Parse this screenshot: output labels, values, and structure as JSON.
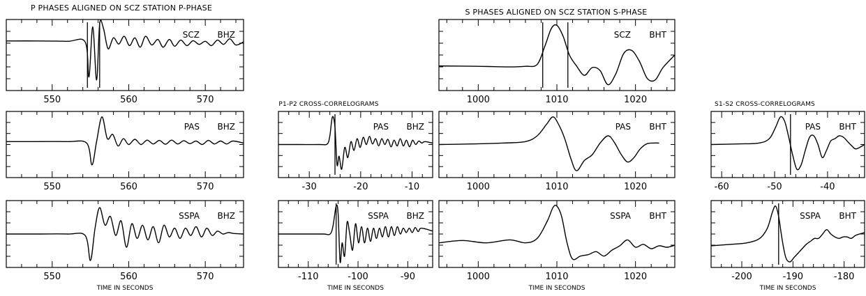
{
  "headers": {
    "p_phases": "P PHASES ALIGNED ON SCZ STATION P-PHASE",
    "s_phases": "S PHASES ALIGNED ON SCZ STATION S-PHASE",
    "p_correlograms": "P1-P2 CROSS-CORRELOGRAMS",
    "s_correlograms": "S1-S2 CROSS-CORRELOGRAMS"
  },
  "chart_data": [
    {
      "id": "p-scz",
      "type": "line",
      "station": "SCZ",
      "channel": "BHZ",
      "xlim": [
        544,
        575
      ],
      "xticks": [
        550,
        560,
        570
      ],
      "xlabel": "",
      "series": [
        {
          "x": [
            544,
            548,
            552,
            554.3,
            554.8,
            555.3,
            555.8,
            556.2,
            556.7,
            557.3,
            558,
            558.7,
            559.4,
            560.1,
            560.8,
            561.5,
            562.2,
            563,
            563.8,
            564.5,
            565.3,
            566,
            566.8,
            567.6,
            568.4,
            569.2,
            570,
            570.8,
            571.6,
            572.4,
            573.2,
            574,
            575
          ],
          "y": [
            0.45,
            0.45,
            0.44,
            0.42,
            -0.7,
            0.9,
            -0.8,
            1.0,
            0.85,
            0.2,
            0.55,
            0.35,
            0.6,
            0.3,
            0.55,
            0.25,
            0.6,
            0.32,
            0.5,
            0.25,
            0.5,
            0.28,
            0.48,
            0.3,
            0.46,
            0.34,
            0.44,
            0.3,
            0.48,
            0.34,
            0.52,
            0.32,
            0.42
          ]
        }
      ],
      "markers": [
        554.6,
        556.2
      ]
    },
    {
      "id": "p-pas",
      "type": "line",
      "station": "PAS",
      "channel": "BHZ",
      "xlim": [
        544,
        575
      ],
      "xticks": [
        550,
        560,
        570
      ],
      "xlabel": "",
      "series": [
        {
          "x": [
            544,
            548,
            552,
            554.5,
            555.2,
            555.8,
            556.5,
            557.2,
            557.9,
            558.6,
            559.3,
            560,
            560.8,
            561.6,
            562.4,
            563.2,
            564,
            564.8,
            565.6,
            566.4,
            567.2,
            568,
            568.8,
            569.6,
            570.4,
            571.2,
            572,
            572.8,
            573.6,
            575
          ],
          "y": [
            0.1,
            0.1,
            0.1,
            0.05,
            -0.7,
            0.1,
            0.95,
            0.2,
            0.35,
            -0.05,
            0.2,
            0.0,
            0.18,
            0.0,
            0.15,
            0.02,
            0.14,
            0.01,
            0.15,
            0.02,
            0.13,
            0.03,
            0.12,
            0.0,
            0.14,
            0.02,
            0.12,
            0.02,
            0.12,
            0.05
          ]
        }
      ],
      "markers": []
    },
    {
      "id": "p-sspa",
      "type": "line",
      "station": "SSPA",
      "channel": "BHZ",
      "xlim": [
        544,
        575
      ],
      "xticks": [
        550,
        560,
        570
      ],
      "xlabel": "TIME IN SECONDS",
      "series": [
        {
          "x": [
            544,
            548,
            552,
            554.3,
            555,
            555.6,
            556.2,
            556.9,
            557.6,
            558.3,
            559,
            559.7,
            560.4,
            561.1,
            561.8,
            562.5,
            563.2,
            563.9,
            564.6,
            565.3,
            566,
            566.7,
            567.4,
            568.1,
            568.8,
            569.5,
            570.2,
            570.9,
            571.6,
            572.3,
            573,
            573.7,
            575
          ],
          "y": [
            0.0,
            0.0,
            0.0,
            -0.05,
            -0.9,
            0.2,
            0.9,
            0.3,
            0.6,
            -0.05,
            0.45,
            -0.45,
            0.35,
            -0.15,
            0.3,
            -0.2,
            0.25,
            -0.3,
            0.3,
            -0.1,
            0.2,
            -0.15,
            0.2,
            -0.05,
            0.25,
            -0.1,
            0.2,
            -0.05,
            0.1,
            0.0,
            0.05,
            0.02,
            0.0
          ]
        }
      ],
      "markers": []
    },
    {
      "id": "pc-pas",
      "type": "line",
      "station": "PAS",
      "channel": "BHZ",
      "xlim": [
        -36,
        -6
      ],
      "xticks": [
        -30,
        -20,
        -10
      ],
      "xlabel": "",
      "series": [
        {
          "x": [
            -36,
            -32,
            -28,
            -26.5,
            -26,
            -25.5,
            -25,
            -24.6,
            -24.2,
            -23.7,
            -23.1,
            -22.5,
            -21.9,
            -21.3,
            -20.7,
            -20.1,
            -19.5,
            -18.9,
            -18.3,
            -17.7,
            -17.1,
            -16.5,
            -15.9,
            -15.3,
            -14.7,
            -14.1,
            -13.5,
            -12.9,
            -12.3,
            -11.7,
            -11.1,
            -10.5,
            -9.9,
            -9.3,
            -8.7,
            -8.1,
            -7.5,
            -6
          ],
          "y": [
            0.0,
            0.0,
            0.0,
            0.02,
            0.3,
            0.95,
            0.6,
            -0.7,
            -0.4,
            -0.85,
            -0.1,
            -0.45,
            0.1,
            -0.2,
            0.2,
            -0.1,
            0.25,
            0.0,
            0.28,
            0.02,
            0.2,
            -0.05,
            0.2,
            0.0,
            0.18,
            -0.08,
            0.15,
            -0.05,
            0.2,
            -0.05,
            0.15,
            -0.08,
            0.15,
            0.0,
            0.12,
            0.05,
            0.1,
            0.05
          ]
        }
      ],
      "markers": [
        -25.0
      ]
    },
    {
      "id": "pc-sspa",
      "type": "line",
      "station": "SSPA",
      "channel": "BHZ",
      "xlim": [
        -116,
        -85
      ],
      "xticks": [
        -110,
        -100,
        -90
      ],
      "xlabel": "TIME IN SECONDS",
      "series": [
        {
          "x": [
            -116,
            -111,
            -107,
            -105.6,
            -105,
            -104.4,
            -104,
            -103.6,
            -103.2,
            -102.7,
            -102.2,
            -101.7,
            -101.1,
            -100.5,
            -99.9,
            -99.3,
            -98.7,
            -98.1,
            -97.5,
            -96.9,
            -96.3,
            -95.7,
            -95.1,
            -94.5,
            -93.9,
            -93.3,
            -92.7,
            -92.1,
            -91.5,
            -90.9,
            -90.3,
            -89.7,
            -89.1,
            -88.5,
            -87.9,
            -87.3,
            -85
          ],
          "y": [
            0.0,
            0.0,
            0.0,
            0.0,
            0.3,
            0.95,
            0.7,
            -0.95,
            -0.3,
            -0.75,
            0.4,
            0.05,
            -0.55,
            0.35,
            -0.3,
            0.25,
            -0.3,
            0.2,
            -0.25,
            0.2,
            -0.15,
            0.2,
            -0.1,
            0.25,
            -0.1,
            0.25,
            -0.05,
            0.25,
            0.0,
            0.2,
            0.05,
            0.2,
            0.05,
            0.22,
            0.08,
            0.2,
            0.1
          ]
        }
      ],
      "markers": [
        -104.4
      ]
    },
    {
      "id": "s-scz",
      "type": "line",
      "station": "SCZ",
      "channel": "BHT",
      "xlim": [
        995,
        1025
      ],
      "xticks": [
        1000,
        1010,
        1020
      ],
      "xlabel": "",
      "series": [
        {
          "x": [
            995,
            1000,
            1004,
            1006,
            1007.5,
            1008.5,
            1009.3,
            1010,
            1010.8,
            1011.6,
            1012.5,
            1013.5,
            1014.5,
            1015.5,
            1016.5,
            1017.5,
            1018.5,
            1019.5,
            1020.5,
            1021.5,
            1022.5,
            1023.5,
            1025
          ],
          "y": [
            -0.35,
            -0.36,
            -0.38,
            -0.36,
            -0.3,
            0.3,
            0.85,
            0.95,
            0.6,
            0.0,
            -0.35,
            -0.65,
            -0.4,
            -0.5,
            -0.95,
            -0.6,
            0.05,
            0.15,
            -0.2,
            -0.75,
            -0.8,
            -0.4,
            0.0
          ]
        }
      ],
      "markers": [
        1008.2,
        1011.4
      ]
    },
    {
      "id": "s-pas",
      "type": "line",
      "station": "PAS",
      "channel": "BHT",
      "xlim": [
        995,
        1025
      ],
      "xticks": [
        1000,
        1010,
        1020
      ],
      "xlabel": "",
      "series": [
        {
          "x": [
            995,
            999,
            1003,
            1006,
            1007.5,
            1008.7,
            1009.5,
            1010.2,
            1011,
            1011.8,
            1012.5,
            1013.5,
            1014.5,
            1015.5,
            1016.5,
            1017.3,
            1018.2,
            1019,
            1019.8,
            1020.6,
            1021.4,
            1022.2,
            1023
          ],
          "y": [
            0.0,
            0.02,
            0.05,
            0.1,
            0.3,
            0.7,
            0.95,
            0.7,
            0.2,
            -0.5,
            -0.9,
            -0.55,
            -0.35,
            0.05,
            0.3,
            0.08,
            -0.35,
            -0.6,
            -0.45,
            -0.15,
            0.02,
            0.05,
            0.05
          ]
        }
      ],
      "markers": []
    },
    {
      "id": "s-sspa",
      "type": "line",
      "station": "SSPA",
      "channel": "BHT",
      "xlim": [
        995,
        1025
      ],
      "xticks": [
        1000,
        1010,
        1020
      ],
      "xlabel": "TIME IN SECONDS",
      "series": [
        {
          "x": [
            995,
            998,
            1001,
            1004,
            1006,
            1007.5,
            1008.8,
            1009.5,
            1010,
            1010.6,
            1011.3,
            1012,
            1013,
            1014,
            1015,
            1016,
            1017,
            1018,
            1019,
            1020,
            1021,
            1022,
            1023,
            1024,
            1025
          ],
          "y": [
            -0.3,
            -0.22,
            -0.3,
            -0.2,
            -0.3,
            -0.15,
            0.45,
            0.9,
            0.95,
            0.6,
            -0.3,
            -0.85,
            -0.75,
            -0.7,
            -0.6,
            -0.75,
            -0.55,
            -0.4,
            -0.2,
            -0.45,
            -0.35,
            -0.5,
            -0.4,
            -0.45,
            -0.38
          ]
        }
      ],
      "markers": []
    },
    {
      "id": "sc-pas",
      "type": "line",
      "station": "PAS",
      "channel": "BHT",
      "xlim": [
        -62,
        -33
      ],
      "xticks": [
        -60,
        -50,
        -40
      ],
      "xlabel": "",
      "series": [
        {
          "x": [
            -62,
            -57,
            -53,
            -51,
            -49.8,
            -48.9,
            -48.1,
            -47.4,
            -46.6,
            -45.8,
            -45,
            -44.2,
            -43.4,
            -42.6,
            -41.8,
            -41,
            -40.2,
            -39.4,
            -38.6,
            -37.8,
            -37,
            -36.2,
            -35.4,
            -34.6,
            -33
          ],
          "y": [
            0.0,
            0.02,
            0.05,
            0.2,
            0.6,
            0.95,
            0.8,
            0.3,
            -0.35,
            -0.85,
            -0.7,
            -0.2,
            0.25,
            0.3,
            0.0,
            -0.45,
            -0.2,
            0.12,
            0.2,
            0.3,
            0.25,
            0.1,
            -0.05,
            -0.15,
            0.0
          ]
        }
      ],
      "markers": [
        -47.0
      ]
    },
    {
      "id": "sc-sspa",
      "type": "line",
      "station": "SSPA",
      "channel": "BHT",
      "xlim": [
        -206,
        -176
      ],
      "xticks": [
        -200,
        -190,
        -180
      ],
      "xlabel": "TIME IN SECONDS",
      "series": [
        {
          "x": [
            -206,
            -202,
            -199,
            -196.5,
            -195,
            -194,
            -193.4,
            -192.8,
            -192.1,
            -191.4,
            -190.6,
            -189.8,
            -189,
            -188.2,
            -187.4,
            -186.6,
            -185.8,
            -185,
            -184.2,
            -183.4,
            -182.6,
            -181.8,
            -181,
            -180.2,
            -179.4,
            -178.6,
            -177.8,
            -177,
            -176
          ],
          "y": [
            -0.4,
            -0.35,
            -0.3,
            -0.15,
            0.2,
            0.75,
            0.95,
            0.6,
            -0.2,
            -0.8,
            -0.95,
            -0.8,
            -0.65,
            -0.5,
            -0.35,
            -0.25,
            -0.15,
            -0.15,
            0.0,
            0.15,
            0.0,
            -0.1,
            -0.15,
            -0.1,
            -0.1,
            -0.15,
            -0.05,
            0.0,
            0.05
          ]
        }
      ],
      "markers": [
        -192.8
      ]
    }
  ]
}
